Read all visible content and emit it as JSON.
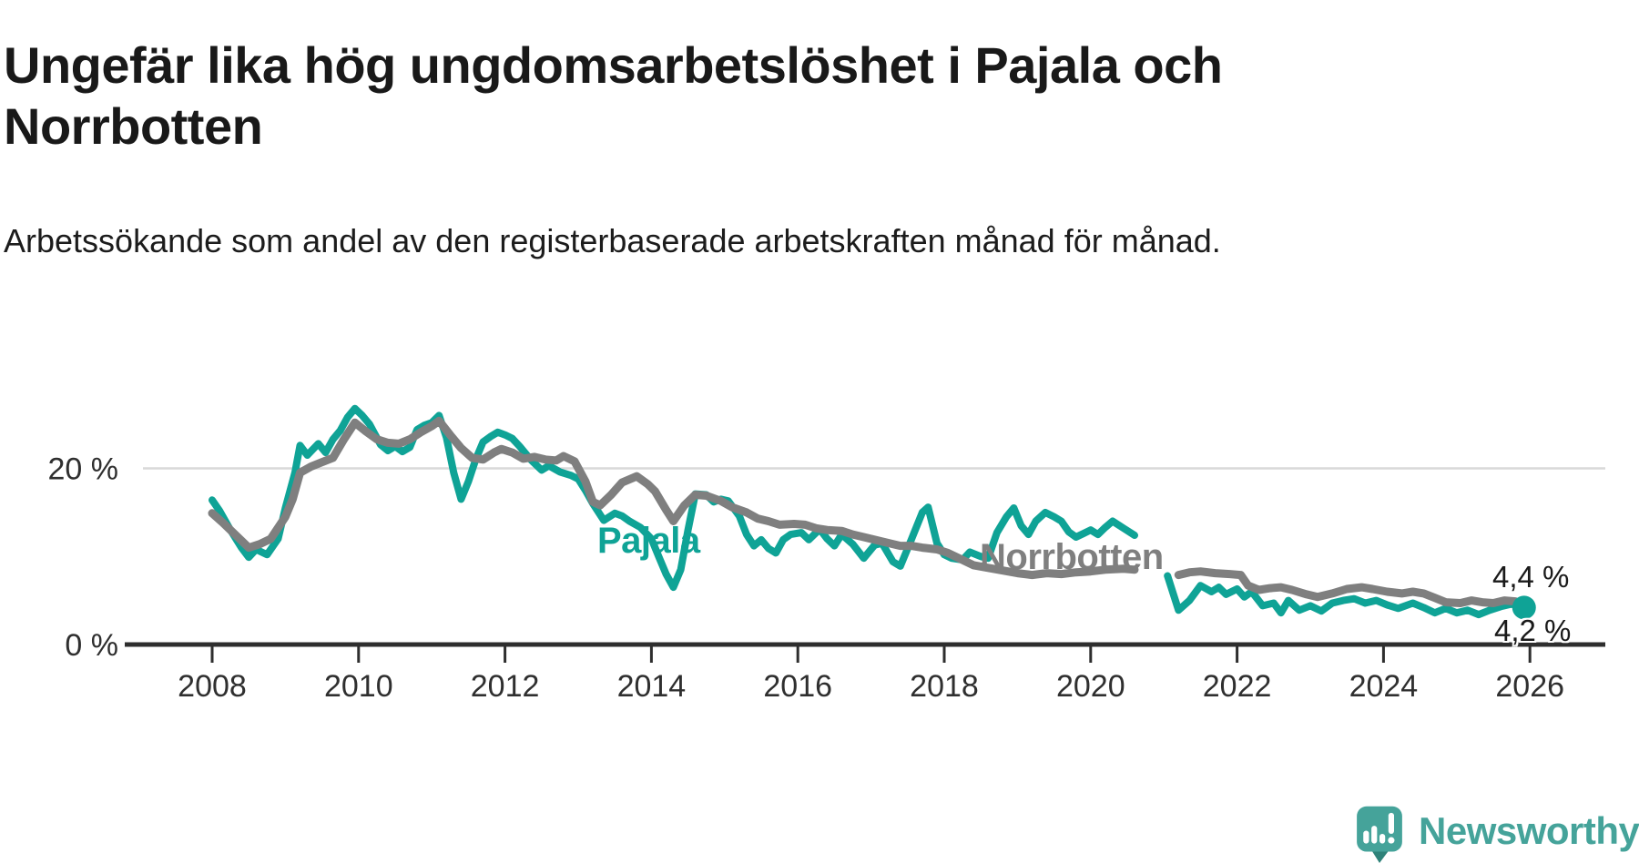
{
  "header": {
    "title": "Ungefär lika hög ungdomsarbetslöshet i Pajala och Norrbotten",
    "subtitle": "Arbetssökande som andel av den registerbaserade arbetskraften månad för månad."
  },
  "footer": {
    "brand": "Newsworthy"
  },
  "colors": {
    "pajala": "#0fa396",
    "norrbotten": "#7f7f7f",
    "axis": "#2e2e2e",
    "grid": "#d9d9d9",
    "tick_text": "#2f2f2f",
    "logo_teal": "#45a39a"
  },
  "chart_data": {
    "type": "line",
    "title": "Ungefär lika hög ungdomsarbetslöshet i Pajala och Norrbotten",
    "subtitle": "Arbetssökande som andel av den registerbaserade arbetskraften månad för månad.",
    "unit": "%",
    "x_ticks": [
      2008,
      2010,
      2012,
      2014,
      2016,
      2018,
      2020,
      2022,
      2024,
      2026
    ],
    "y_ticks": [
      {
        "value": 20,
        "label": "20 %"
      },
      {
        "value": 0,
        "label": "0 %"
      }
    ],
    "x_range": [
      2008,
      2026.4
    ],
    "y_range": [
      0,
      30
    ],
    "grid": "horizontal-only",
    "legend_position": "inline-labels",
    "note": "Data gap drawn between mid-2020 and early 2021",
    "series": [
      {
        "name": "Pajala",
        "color": "#0fa396",
        "width": 8,
        "end_dot": true,
        "end_label": "4,2 %",
        "last_value": 4.2,
        "segments": [
          [
            [
              2008.0,
              16.4
            ],
            [
              2008.1,
              15.2
            ],
            [
              2008.25,
              13.0
            ],
            [
              2008.4,
              11.0
            ],
            [
              2008.5,
              9.9
            ],
            [
              2008.6,
              10.8
            ],
            [
              2008.75,
              10.2
            ],
            [
              2008.9,
              12.0
            ],
            [
              2009.0,
              15.5
            ],
            [
              2009.13,
              19.5
            ],
            [
              2009.2,
              22.6
            ],
            [
              2009.3,
              21.5
            ],
            [
              2009.45,
              22.8
            ],
            [
              2009.55,
              21.8
            ],
            [
              2009.65,
              23.3
            ],
            [
              2009.75,
              24.3
            ],
            [
              2009.85,
              25.8
            ],
            [
              2009.95,
              26.8
            ],
            [
              2010.05,
              26.0
            ],
            [
              2010.15,
              25.0
            ],
            [
              2010.3,
              22.7
            ],
            [
              2010.4,
              22.0
            ],
            [
              2010.5,
              22.5
            ],
            [
              2010.6,
              21.9
            ],
            [
              2010.7,
              22.4
            ],
            [
              2010.8,
              24.4
            ],
            [
              2010.9,
              24.9
            ],
            [
              2011.0,
              25.2
            ],
            [
              2011.1,
              26.0
            ],
            [
              2011.2,
              23.5
            ],
            [
              2011.3,
              19.5
            ],
            [
              2011.4,
              16.5
            ],
            [
              2011.5,
              18.5
            ],
            [
              2011.6,
              21.0
            ],
            [
              2011.7,
              23.0
            ],
            [
              2011.8,
              23.6
            ],
            [
              2011.9,
              24.1
            ],
            [
              2012.0,
              23.8
            ],
            [
              2012.1,
              23.4
            ],
            [
              2012.2,
              22.5
            ],
            [
              2012.35,
              21.0
            ],
            [
              2012.5,
              19.8
            ],
            [
              2012.6,
              20.3
            ],
            [
              2012.75,
              19.6
            ],
            [
              2012.9,
              19.2
            ],
            [
              2013.0,
              18.8
            ],
            [
              2013.1,
              17.5
            ],
            [
              2013.2,
              16.0
            ],
            [
              2013.35,
              14.1
            ],
            [
              2013.5,
              14.9
            ],
            [
              2013.6,
              14.6
            ],
            [
              2013.7,
              14.0
            ],
            [
              2013.85,
              13.3
            ],
            [
              2014.0,
              12.0
            ],
            [
              2014.1,
              10.0
            ],
            [
              2014.2,
              8.0
            ],
            [
              2014.3,
              6.5
            ],
            [
              2014.4,
              8.5
            ],
            [
              2014.5,
              13.0
            ],
            [
              2014.6,
              17.1
            ],
            [
              2014.75,
              17.0
            ],
            [
              2014.85,
              16.2
            ],
            [
              2014.95,
              16.5
            ],
            [
              2015.05,
              16.3
            ],
            [
              2015.2,
              14.6
            ],
            [
              2015.3,
              12.5
            ],
            [
              2015.4,
              11.2
            ],
            [
              2015.5,
              11.9
            ],
            [
              2015.6,
              10.9
            ],
            [
              2015.7,
              10.4
            ],
            [
              2015.8,
              11.9
            ],
            [
              2015.9,
              12.5
            ],
            [
              2016.05,
              12.7
            ],
            [
              2016.15,
              11.9
            ],
            [
              2016.3,
              13.1
            ],
            [
              2016.4,
              12.0
            ],
            [
              2016.5,
              11.2
            ],
            [
              2016.6,
              12.5
            ],
            [
              2016.75,
              11.4
            ],
            [
              2016.9,
              9.8
            ],
            [
              2017.05,
              11.3
            ],
            [
              2017.15,
              11.5
            ],
            [
              2017.3,
              9.4
            ],
            [
              2017.4,
              8.9
            ],
            [
              2017.55,
              11.9
            ],
            [
              2017.7,
              15.0
            ],
            [
              2017.78,
              15.6
            ],
            [
              2017.9,
              11.5
            ],
            [
              2018.0,
              10.2
            ],
            [
              2018.1,
              9.8
            ],
            [
              2018.25,
              9.6
            ],
            [
              2018.35,
              10.5
            ],
            [
              2018.5,
              10.0
            ],
            [
              2018.6,
              9.8
            ],
            [
              2018.72,
              12.7
            ],
            [
              2018.85,
              14.5
            ],
            [
              2018.95,
              15.5
            ],
            [
              2019.05,
              13.5
            ],
            [
              2019.15,
              12.5
            ],
            [
              2019.25,
              14.0
            ],
            [
              2019.38,
              15.0
            ],
            [
              2019.5,
              14.5
            ],
            [
              2019.6,
              14.0
            ],
            [
              2019.7,
              12.8
            ],
            [
              2019.8,
              12.2
            ],
            [
              2019.9,
              12.6
            ],
            [
              2020.0,
              13.0
            ],
            [
              2020.1,
              12.5
            ],
            [
              2020.2,
              13.3
            ],
            [
              2020.3,
              14.0
            ],
            [
              2020.45,
              13.2
            ],
            [
              2020.6,
              12.4
            ]
          ],
          [
            [
              2021.05,
              7.8
            ],
            [
              2021.2,
              3.9
            ],
            [
              2021.35,
              5.0
            ],
            [
              2021.5,
              6.7
            ],
            [
              2021.65,
              6.0
            ],
            [
              2021.75,
              6.5
            ],
            [
              2021.85,
              5.7
            ],
            [
              2022.0,
              6.3
            ],
            [
              2022.1,
              5.4
            ],
            [
              2022.2,
              6.0
            ],
            [
              2022.35,
              4.4
            ],
            [
              2022.5,
              4.7
            ],
            [
              2022.6,
              3.6
            ],
            [
              2022.7,
              5.0
            ],
            [
              2022.85,
              3.9
            ],
            [
              2023.0,
              4.4
            ],
            [
              2023.15,
              3.8
            ],
            [
              2023.3,
              4.7
            ],
            [
              2023.45,
              5.0
            ],
            [
              2023.6,
              5.2
            ],
            [
              2023.75,
              4.7
            ],
            [
              2023.9,
              5.0
            ],
            [
              2024.05,
              4.5
            ],
            [
              2024.2,
              4.1
            ],
            [
              2024.4,
              4.7
            ],
            [
              2024.55,
              4.2
            ],
            [
              2024.7,
              3.6
            ],
            [
              2024.85,
              4.1
            ],
            [
              2025.0,
              3.6
            ],
            [
              2025.15,
              3.9
            ],
            [
              2025.3,
              3.4
            ],
            [
              2025.45,
              3.9
            ],
            [
              2025.6,
              4.3
            ],
            [
              2025.75,
              4.6
            ],
            [
              2025.92,
              4.2
            ]
          ]
        ]
      },
      {
        "name": "Norrbotten",
        "color": "#7f7f7f",
        "width": 9,
        "end_dot": false,
        "end_label": "4,4 %",
        "last_value": 4.4,
        "segments": [
          [
            [
              2008.0,
              14.9
            ],
            [
              2008.15,
              13.8
            ],
            [
              2008.3,
              12.6
            ],
            [
              2008.5,
              11.0
            ],
            [
              2008.65,
              11.4
            ],
            [
              2008.8,
              12.0
            ],
            [
              2009.0,
              14.5
            ],
            [
              2009.1,
              16.5
            ],
            [
              2009.2,
              19.5
            ],
            [
              2009.35,
              20.2
            ],
            [
              2009.5,
              20.7
            ],
            [
              2009.65,
              21.2
            ],
            [
              2009.8,
              23.3
            ],
            [
              2009.95,
              25.2
            ],
            [
              2010.1,
              24.2
            ],
            [
              2010.25,
              23.3
            ],
            [
              2010.4,
              22.9
            ],
            [
              2010.55,
              22.8
            ],
            [
              2010.7,
              23.3
            ],
            [
              2010.85,
              24.1
            ],
            [
              2011.0,
              24.8
            ],
            [
              2011.1,
              25.4
            ],
            [
              2011.25,
              23.8
            ],
            [
              2011.4,
              22.3
            ],
            [
              2011.55,
              21.2
            ],
            [
              2011.7,
              21.0
            ],
            [
              2011.85,
              21.8
            ],
            [
              2011.95,
              22.2
            ],
            [
              2012.1,
              21.8
            ],
            [
              2012.25,
              21.1
            ],
            [
              2012.4,
              21.3
            ],
            [
              2012.55,
              21.0
            ],
            [
              2012.7,
              20.9
            ],
            [
              2012.8,
              21.4
            ],
            [
              2012.95,
              20.8
            ],
            [
              2013.1,
              18.5
            ],
            [
              2013.2,
              16.2
            ],
            [
              2013.3,
              15.8
            ],
            [
              2013.45,
              17.0
            ],
            [
              2013.6,
              18.4
            ],
            [
              2013.8,
              19.1
            ],
            [
              2013.95,
              18.2
            ],
            [
              2014.05,
              17.4
            ],
            [
              2014.2,
              15.3
            ],
            [
              2014.3,
              14.0
            ],
            [
              2014.45,
              15.8
            ],
            [
              2014.6,
              17.0
            ],
            [
              2014.75,
              16.9
            ],
            [
              2014.95,
              16.3
            ],
            [
              2015.1,
              15.6
            ],
            [
              2015.3,
              15.0
            ],
            [
              2015.45,
              14.3
            ],
            [
              2015.6,
              14.0
            ],
            [
              2015.75,
              13.6
            ],
            [
              2015.95,
              13.7
            ],
            [
              2016.1,
              13.6
            ],
            [
              2016.25,
              13.2
            ],
            [
              2016.4,
              13.0
            ],
            [
              2016.6,
              12.9
            ],
            [
              2016.75,
              12.5
            ],
            [
              2016.9,
              12.2
            ],
            [
              2017.05,
              11.9
            ],
            [
              2017.25,
              11.5
            ],
            [
              2017.4,
              11.2
            ],
            [
              2017.55,
              11.2
            ],
            [
              2017.7,
              11.0
            ],
            [
              2017.9,
              10.8
            ],
            [
              2018.05,
              10.4
            ],
            [
              2018.2,
              9.8
            ],
            [
              2018.4,
              9.0
            ],
            [
              2018.6,
              8.7
            ],
            [
              2018.8,
              8.4
            ],
            [
              2019.0,
              8.1
            ],
            [
              2019.2,
              7.9
            ],
            [
              2019.4,
              8.1
            ],
            [
              2019.6,
              8.0
            ],
            [
              2019.8,
              8.2
            ],
            [
              2020.0,
              8.3
            ],
            [
              2020.2,
              8.5
            ],
            [
              2020.45,
              8.6
            ],
            [
              2020.6,
              8.5
            ]
          ],
          [
            [
              2021.2,
              7.9
            ],
            [
              2021.35,
              8.2
            ],
            [
              2021.5,
              8.3
            ],
            [
              2021.7,
              8.1
            ],
            [
              2021.9,
              8.0
            ],
            [
              2022.05,
              7.9
            ],
            [
              2022.15,
              6.7
            ],
            [
              2022.3,
              6.2
            ],
            [
              2022.45,
              6.4
            ],
            [
              2022.6,
              6.5
            ],
            [
              2022.75,
              6.2
            ],
            [
              2022.95,
              5.7
            ],
            [
              2023.1,
              5.4
            ],
            [
              2023.3,
              5.8
            ],
            [
              2023.5,
              6.3
            ],
            [
              2023.7,
              6.5
            ],
            [
              2023.85,
              6.3
            ],
            [
              2024.05,
              6.0
            ],
            [
              2024.25,
              5.8
            ],
            [
              2024.4,
              6.0
            ],
            [
              2024.55,
              5.8
            ],
            [
              2024.7,
              5.3
            ],
            [
              2024.85,
              4.8
            ],
            [
              2025.05,
              4.7
            ],
            [
              2025.2,
              5.0
            ],
            [
              2025.35,
              4.8
            ],
            [
              2025.5,
              4.7
            ],
            [
              2025.65,
              5.0
            ],
            [
              2025.8,
              4.9
            ],
            [
              2025.92,
              4.4
            ]
          ]
        ]
      }
    ]
  }
}
